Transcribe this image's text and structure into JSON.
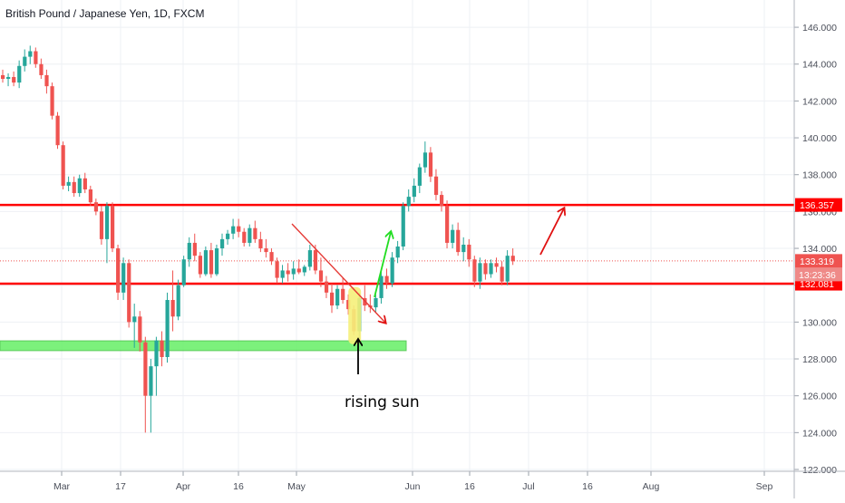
{
  "chart_data": {
    "type": "candlestick",
    "title": "British Pound / Japanese Yen, 1D, FXCM",
    "x_tick_labels": [
      "Mar",
      "17",
      "Apr",
      "16",
      "May",
      "Jun",
      "16",
      "Jul",
      "16",
      "Aug",
      "Sep"
    ],
    "y_tick_labels": [
      "122.000",
      "124.000",
      "126.000",
      "128.000",
      "130.000",
      "132.000",
      "134.000",
      "136.000",
      "138.000",
      "140.000",
      "142.000",
      "144.000",
      "146.000"
    ],
    "ylim": [
      122.0,
      147.0
    ],
    "grid": true,
    "colors": {
      "up": "#26a69a",
      "down": "#ef5350",
      "level": "#ff0000",
      "zone": "#66ef66",
      "arrow_green": "#22dd22"
    },
    "ohlc": [
      [
        143.4,
        143.7,
        143.0,
        143.2
      ],
      [
        143.2,
        143.5,
        142.8,
        143.3
      ],
      [
        143.3,
        143.6,
        142.8,
        143.0
      ],
      [
        143.0,
        144.2,
        142.7,
        143.9
      ],
      [
        143.9,
        144.8,
        143.6,
        144.4
      ],
      [
        144.4,
        145.0,
        144.0,
        144.7
      ],
      [
        144.7,
        144.9,
        143.8,
        144.0
      ],
      [
        144.0,
        144.3,
        143.2,
        143.4
      ],
      [
        143.4,
        143.7,
        142.4,
        142.8
      ],
      [
        142.8,
        143.0,
        141.0,
        141.2
      ],
      [
        141.2,
        141.4,
        139.4,
        139.6
      ],
      [
        139.6,
        139.8,
        137.2,
        137.4
      ],
      [
        137.4,
        137.9,
        137.1,
        137.6
      ],
      [
        137.6,
        137.9,
        136.8,
        137.0
      ],
      [
        137.0,
        138.0,
        136.8,
        137.8
      ],
      [
        137.8,
        138.1,
        137.0,
        137.2
      ],
      [
        137.2,
        137.4,
        136.3,
        136.5
      ],
      [
        136.5,
        136.7,
        135.8,
        136.0
      ],
      [
        136.0,
        136.3,
        134.2,
        134.5
      ],
      [
        134.5,
        136.5,
        133.2,
        136.3
      ],
      [
        136.3,
        136.5,
        133.8,
        134.0
      ],
      [
        134.0,
        134.2,
        131.2,
        131.6
      ],
      [
        131.6,
        133.5,
        131.2,
        133.2
      ],
      [
        133.2,
        133.4,
        129.7,
        130.0
      ],
      [
        130.0,
        131.0,
        128.6,
        130.3
      ],
      [
        130.3,
        130.6,
        128.4,
        128.9
      ],
      [
        128.9,
        129.2,
        124.0,
        126.0
      ],
      [
        126.0,
        128.0,
        124.0,
        127.6
      ],
      [
        127.6,
        129.2,
        126.0,
        129.0
      ],
      [
        129.0,
        129.5,
        127.6,
        128.1
      ],
      [
        128.1,
        131.6,
        127.8,
        131.2
      ],
      [
        131.2,
        132.8,
        129.5,
        130.3
      ],
      [
        130.3,
        132.3,
        130.1,
        132.0
      ],
      [
        132.0,
        133.6,
        131.9,
        133.4
      ],
      [
        133.4,
        134.6,
        133.0,
        134.3
      ],
      [
        134.3,
        134.8,
        133.3,
        133.6
      ],
      [
        133.6,
        133.8,
        132.4,
        132.6
      ],
      [
        132.6,
        134.1,
        132.5,
        133.9
      ],
      [
        133.9,
        134.3,
        132.4,
        132.6
      ],
      [
        132.6,
        134.2,
        132.5,
        134.0
      ],
      [
        134.0,
        134.8,
        133.6,
        134.5
      ],
      [
        134.5,
        135.0,
        134.2,
        134.8
      ],
      [
        134.8,
        135.6,
        134.5,
        135.2
      ],
      [
        135.2,
        135.6,
        134.6,
        134.9
      ],
      [
        134.9,
        135.1,
        134.1,
        134.3
      ],
      [
        134.3,
        135.3,
        134.1,
        135.1
      ],
      [
        135.1,
        135.5,
        134.3,
        134.5
      ],
      [
        134.5,
        134.9,
        133.8,
        134.0
      ],
      [
        134.0,
        134.5,
        133.5,
        133.8
      ],
      [
        133.8,
        134.0,
        133.1,
        133.3
      ],
      [
        133.3,
        133.5,
        132.1,
        132.4
      ],
      [
        132.4,
        133.1,
        132.1,
        132.8
      ],
      [
        132.8,
        133.2,
        132.2,
        132.6
      ],
      [
        132.6,
        133.3,
        132.3,
        132.9
      ],
      [
        132.9,
        133.4,
        132.6,
        132.7
      ],
      [
        132.7,
        133.1,
        132.5,
        133.0
      ],
      [
        133.0,
        134.2,
        132.8,
        133.9
      ],
      [
        133.9,
        134.2,
        132.6,
        132.8
      ],
      [
        132.8,
        133.5,
        131.9,
        132.2
      ],
      [
        132.2,
        132.5,
        131.3,
        131.6
      ],
      [
        131.6,
        132.1,
        130.5,
        130.9
      ],
      [
        130.9,
        132.0,
        130.7,
        131.8
      ],
      [
        131.8,
        132.4,
        131.0,
        131.2
      ],
      [
        131.2,
        131.5,
        130.4,
        130.7
      ],
      [
        130.7,
        130.9,
        129.3,
        129.5
      ],
      [
        129.5,
        131.6,
        129.1,
        131.3
      ],
      [
        131.3,
        132.0,
        130.6,
        130.9
      ],
      [
        130.9,
        131.5,
        130.5,
        130.8
      ],
      [
        130.8,
        131.5,
        130.5,
        131.3
      ],
      [
        131.3,
        132.8,
        131.0,
        132.5
      ],
      [
        132.5,
        132.9,
        131.8,
        132.1
      ],
      [
        132.1,
        133.8,
        131.9,
        133.5
      ],
      [
        133.5,
        134.4,
        133.2,
        134.1
      ],
      [
        134.1,
        136.5,
        133.9,
        136.3
      ],
      [
        136.3,
        137.2,
        136.0,
        136.8
      ],
      [
        136.8,
        137.8,
        136.5,
        137.4
      ],
      [
        137.4,
        138.6,
        137.0,
        138.4
      ],
      [
        138.4,
        139.8,
        138.1,
        139.2
      ],
      [
        139.2,
        139.5,
        137.6,
        137.9
      ],
      [
        137.9,
        138.3,
        136.6,
        136.9
      ],
      [
        136.9,
        137.1,
        136.0,
        136.3
      ],
      [
        136.3,
        136.6,
        134.0,
        134.3
      ],
      [
        134.3,
        135.3,
        134.0,
        135.0
      ],
      [
        135.0,
        135.4,
        133.6,
        133.8
      ],
      [
        133.8,
        134.6,
        133.3,
        134.2
      ],
      [
        134.2,
        134.5,
        133.0,
        133.4
      ],
      [
        133.4,
        133.6,
        131.9,
        132.2
      ],
      [
        132.2,
        133.5,
        131.8,
        133.2
      ],
      [
        133.2,
        133.4,
        132.3,
        132.6
      ],
      [
        132.6,
        133.4,
        132.4,
        133.2
      ],
      [
        133.2,
        133.5,
        132.7,
        133.0
      ],
      [
        133.0,
        133.3,
        132.0,
        132.2
      ],
      [
        132.2,
        133.9,
        132.0,
        133.6
      ],
      [
        133.6,
        134.0,
        133.1,
        133.3
      ]
    ],
    "levels": [
      {
        "price": 136.357,
        "label": "136.357",
        "style": "solid"
      },
      {
        "price": 132.081,
        "label": "132.081",
        "style": "solid"
      },
      {
        "price": 133.319,
        "label": "133.319",
        "style": "dotted"
      }
    ],
    "countdown_label": "13:23:36",
    "annotation": "rising sun"
  }
}
